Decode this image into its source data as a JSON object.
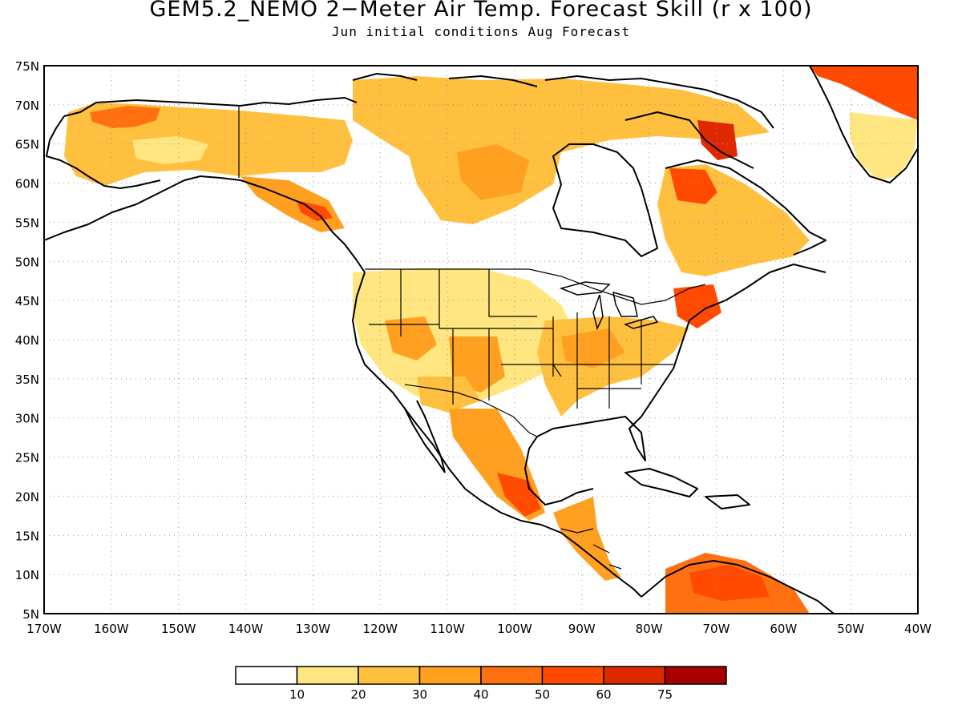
{
  "title": "GEM5.2_NEMO 2−Meter Air Temp. Forecast Skill (r x 100)",
  "subtitle": "Jun initial conditions  Aug Forecast",
  "axes": {
    "lat_labels": [
      "75N",
      "70N",
      "65N",
      "60N",
      "55N",
      "50N",
      "45N",
      "40N",
      "35N",
      "30N",
      "25N",
      "20N",
      "15N",
      "10N",
      "5N"
    ],
    "lon_labels": [
      "170W",
      "160W",
      "150W",
      "140W",
      "130W",
      "120W",
      "110W",
      "100W",
      "90W",
      "80W",
      "70W",
      "60W",
      "50W",
      "40W"
    ],
    "lat_range": [
      5,
      75
    ],
    "lon_range": [
      -170,
      -40
    ],
    "grid": "dotted"
  },
  "legend": {
    "colors": [
      "#ffffff",
      "#ffe680",
      "#ffc040",
      "#ffa020",
      "#ff7010",
      "#ff4a00",
      "#e02800",
      "#a80000"
    ],
    "labels": [
      "10",
      "20",
      "30",
      "40",
      "50",
      "60",
      "75"
    ]
  },
  "map": {
    "colors": {
      "c1": "#ffe680",
      "c2": "#ffc040",
      "c3": "#ffa020",
      "c4": "#ff7010",
      "c5": "#ff4a00",
      "c6": "#e02800"
    }
  }
}
